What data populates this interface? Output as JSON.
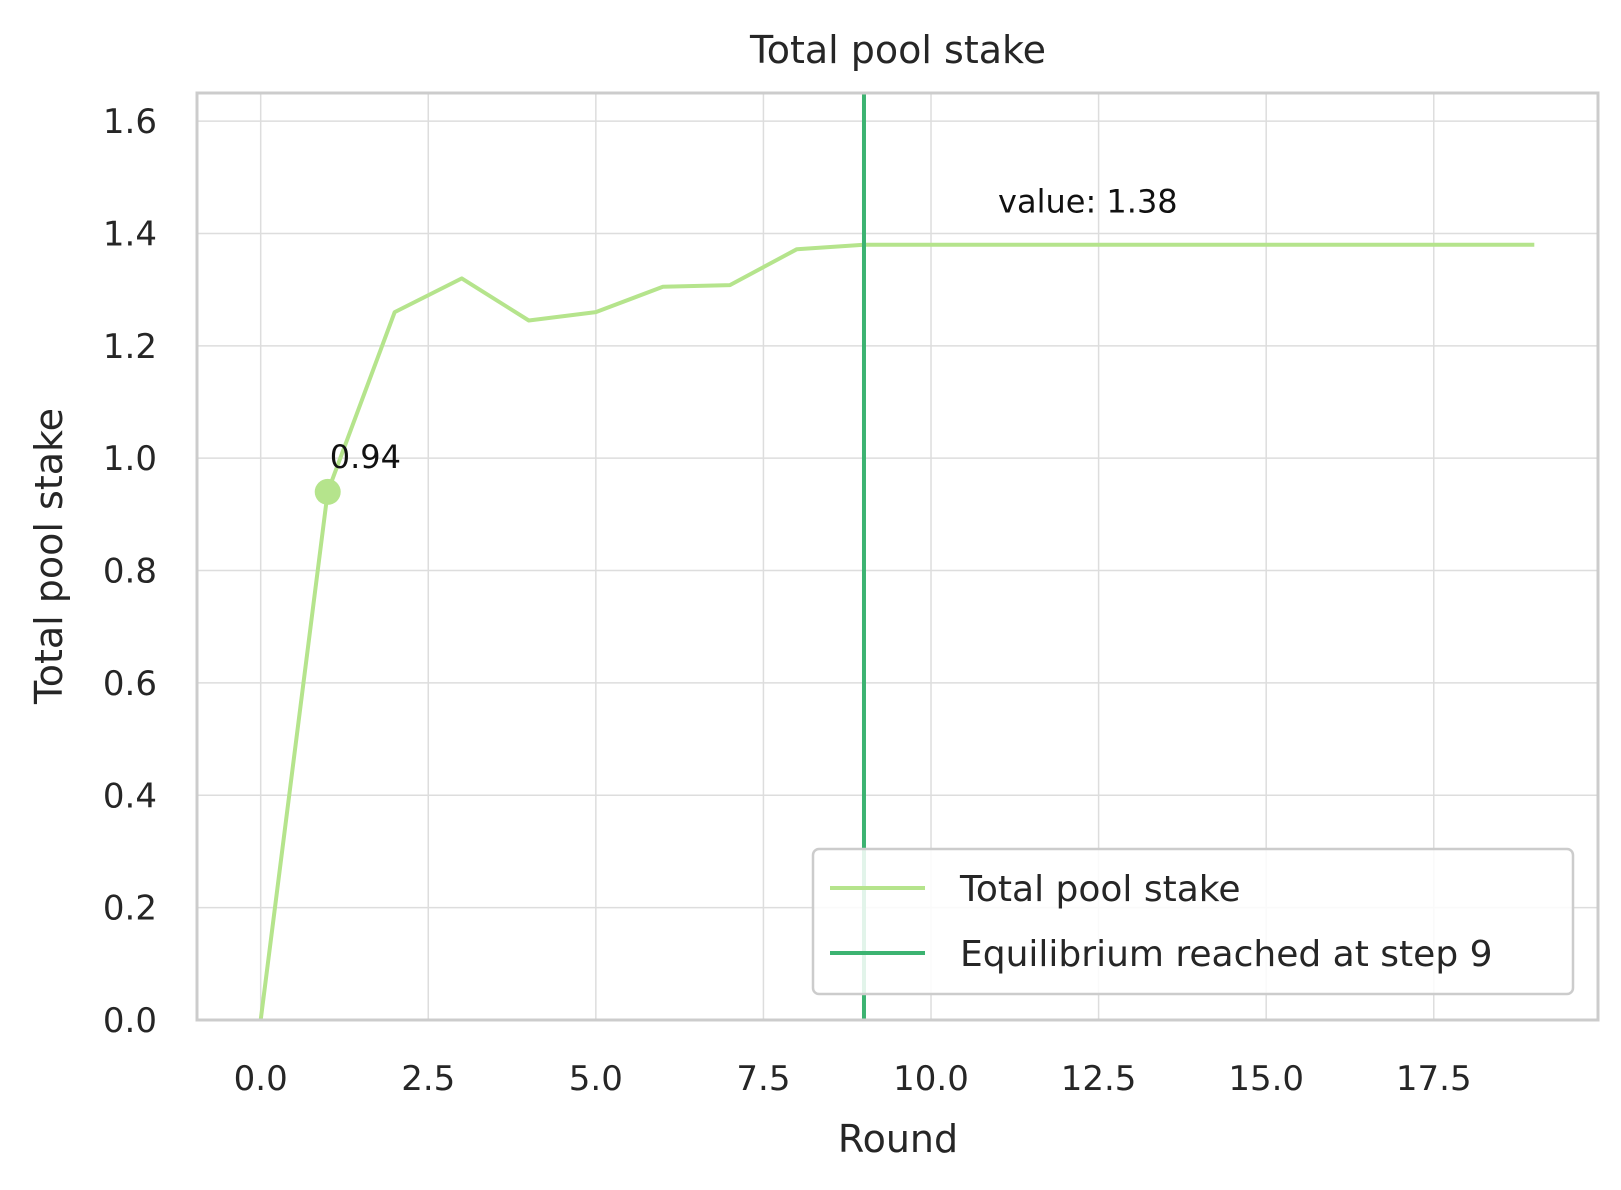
{
  "chart_data": {
    "type": "line",
    "title": "Total pool stake",
    "xlabel": "Round",
    "ylabel": "Total pool stake",
    "xlim": [
      -0.95,
      19.95
    ],
    "ylim": [
      0.0,
      1.65
    ],
    "xticks": [
      0,
      2.5,
      5,
      7.5,
      10,
      12.5,
      15,
      17.5
    ],
    "xtick_labels": [
      "0.0",
      "2.5",
      "5.0",
      "7.5",
      "10.0",
      "12.5",
      "15.0",
      "17.5"
    ],
    "yticks": [
      0,
      0.2,
      0.4,
      0.6,
      0.8,
      1.0,
      1.2,
      1.4,
      1.6
    ],
    "ytick_labels": [
      "0.0",
      "0.2",
      "0.4",
      "0.6",
      "0.8",
      "1.0",
      "1.2",
      "1.4",
      "1.6"
    ],
    "grid": true,
    "legend_position": "bottom-right",
    "series": [
      {
        "name": "Total pool stake",
        "color": "#b5e48c",
        "x": [
          0,
          1,
          2,
          3,
          4,
          5,
          6,
          7,
          8,
          9,
          10,
          11,
          12,
          13,
          14,
          15,
          16,
          17,
          18,
          19
        ],
        "y": [
          0.0,
          0.94,
          1.26,
          1.32,
          1.245,
          1.26,
          1.305,
          1.308,
          1.372,
          1.38,
          1.38,
          1.38,
          1.38,
          1.38,
          1.38,
          1.38,
          1.38,
          1.38,
          1.38,
          1.38
        ]
      }
    ],
    "vline": {
      "name": "Equilibrium reached at step 9",
      "x": 9,
      "color": "#3cb371"
    },
    "annotations": [
      {
        "text": "0.94",
        "x": 1,
        "y": 0.94
      },
      {
        "text": "value: 1.38",
        "x": 11,
        "y": 1.38
      }
    ]
  }
}
